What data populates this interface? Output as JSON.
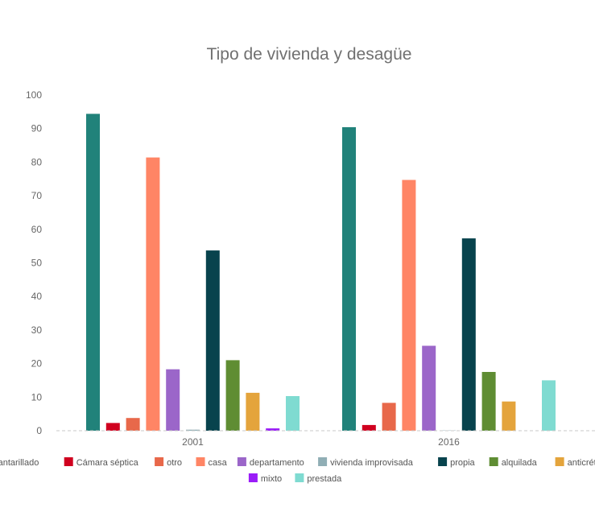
{
  "chart_data": {
    "type": "bar",
    "title": "Tipo de vivienda y desagüe",
    "categories": [
      "2001",
      "2016"
    ],
    "ylim": [
      0,
      100
    ],
    "yticks": [
      0,
      10,
      20,
      30,
      40,
      50,
      60,
      70,
      80,
      90,
      100
    ],
    "grid": false,
    "legend_position": "bottom",
    "series": [
      {
        "name": "Alcantarillado",
        "color": "#21827a",
        "values": [
          94.4,
          90.4
        ]
      },
      {
        "name": "Cámara séptica",
        "color": "#d0001f",
        "values": [
          2.3,
          1.7
        ]
      },
      {
        "name": "otro",
        "color": "#e8684a",
        "values": [
          3.8,
          8.3
        ]
      },
      {
        "name": "casa",
        "color": "#ff8565",
        "values": [
          81.4,
          74.7
        ]
      },
      {
        "name": "departamento",
        "color": "#9b66c9",
        "values": [
          18.3,
          25.3
        ]
      },
      {
        "name": "vivienda improvisada",
        "color": "#90aeb5",
        "values": [
          0.3,
          0.1
        ]
      },
      {
        "name": "propia",
        "color": "#08434d",
        "values": [
          53.7,
          57.3
        ]
      },
      {
        "name": "alquilada",
        "color": "#5f8d33",
        "values": [
          21.0,
          17.5
        ]
      },
      {
        "name": "anticrético",
        "color": "#e4a43c",
        "values": [
          11.3,
          8.7
        ]
      },
      {
        "name": "mixto",
        "color": "#9a1cf8",
        "values": [
          0.7,
          0.0
        ]
      },
      {
        "name": "prestada",
        "color": "#7fdbd1",
        "values": [
          10.3,
          15.0
        ]
      }
    ]
  }
}
